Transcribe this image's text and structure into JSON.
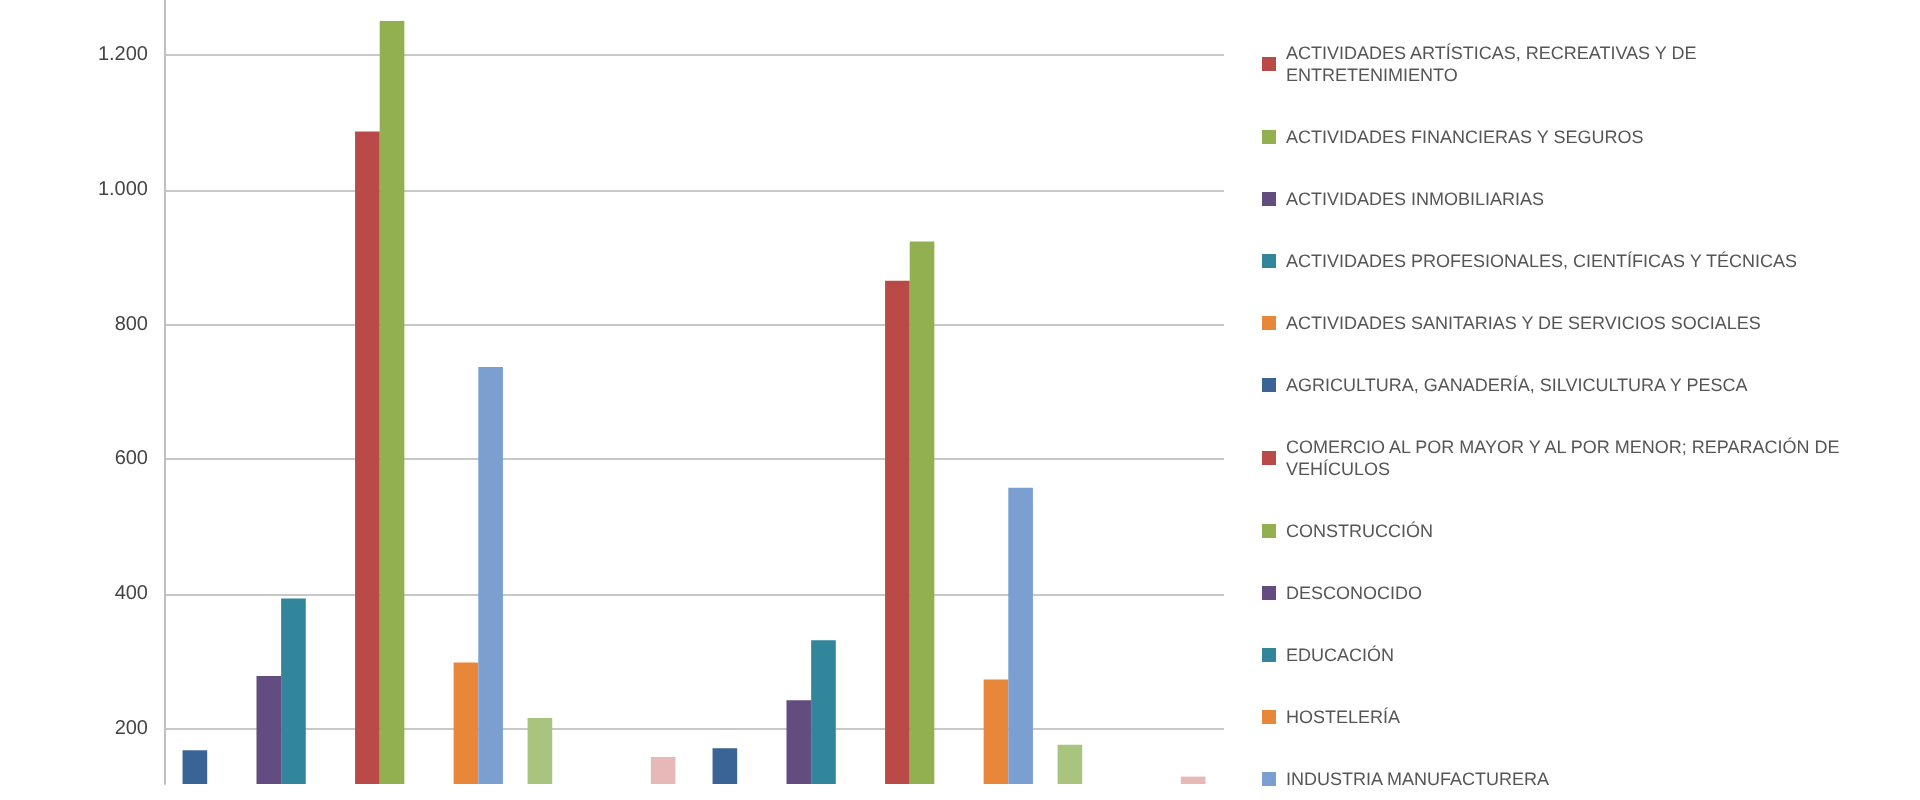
{
  "chart_data": {
    "type": "bar",
    "categories": [
      null,
      null
    ],
    "series": [
      {
        "color": "#3a6496",
        "values": [
          169,
          172
        ]
      },
      {
        "name": "ACTIVIDADES ARTÍSTICAS, RECREATIVAS Y DE ENTRETENIMIENTO",
        "color": "#b94a48",
        "values": [
          null,
          null
        ]
      },
      {
        "name": "ACTIVIDADES FINANCIERAS Y SEGUROS",
        "color": "#92b050",
        "values": [
          null,
          null
        ]
      },
      {
        "name": "ACTIVIDADES INMOBILIARIAS",
        "color": "#634c80",
        "values": [
          279,
          243
        ]
      },
      {
        "name": "ACTIVIDADES PROFESIONALES, CIENTÍFICAS Y TÉCNICAS",
        "color": "#31869b",
        "values": [
          394,
          332
        ]
      },
      {
        "name": "ACTIVIDADES SANITARIAS Y DE SERVICIOS SOCIALES",
        "color": "#e8863a",
        "values": [
          null,
          null
        ]
      },
      {
        "name": "AGRICULTURA, GANADERÍA, SILVICULTURA Y PESCA",
        "color": "#3a6496",
        "values": [
          null,
          null
        ]
      },
      {
        "name": "COMERCIO AL POR MAYOR Y AL POR MENOR; REPARACIÓN DE VEHÍCULOS",
        "color": "#b94a48",
        "values": [
          1086,
          865
        ]
      },
      {
        "name": "CONSTRUCCIÓN",
        "color": "#92b050",
        "values": [
          1250,
          923
        ]
      },
      {
        "name": "DESCONOCIDO",
        "color": "#634c80",
        "values": [
          null,
          null
        ]
      },
      {
        "name": "EDUCACIÓN",
        "color": "#31869b",
        "values": [
          null,
          null
        ]
      },
      {
        "name": "HOSTELERÍA",
        "color": "#e8863a",
        "values": [
          299,
          274
        ]
      },
      {
        "name": "INDUSTRIA MANUFACTURERA",
        "color": "#7b9fd0",
        "values": [
          737,
          558
        ]
      },
      {
        "values": [
          null,
          null
        ]
      },
      {
        "color": "#a9c47f",
        "values": [
          217,
          177
        ]
      },
      {
        "values": [
          null,
          null
        ]
      },
      {
        "values": [
          null,
          null
        ]
      },
      {
        "values": [
          null,
          null
        ]
      },
      {
        "values": [
          null,
          null
        ]
      },
      {
        "color": "#e6b9b8",
        "values": [
          159,
          130
        ]
      }
    ],
    "ylim": [
      119,
      1281
    ],
    "yticks": [
      200,
      400,
      600,
      800,
      {
        "value": 1000,
        "label": "1.000"
      },
      {
        "value": 1200,
        "label": "1.200"
      }
    ],
    "grid": "y",
    "legend": "right"
  }
}
